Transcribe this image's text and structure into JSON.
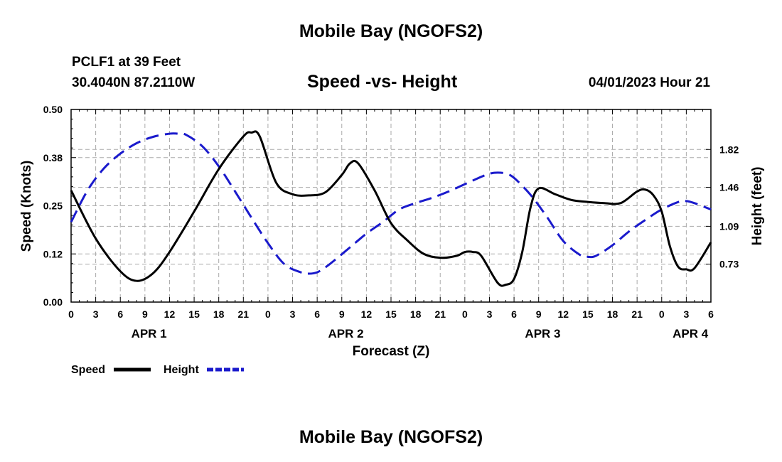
{
  "title": "Mobile Bay (NGOFS2)",
  "title_bottom": "Mobile Bay (NGOFS2)",
  "station_line": "PCLF1 at 39 Feet",
  "coords_line": "30.4040N  87.2110W",
  "subtitle": "Speed -vs- Height",
  "run_time": "04/01/2023 Hour 21",
  "legend": {
    "speed": "Speed",
    "height": "Height"
  },
  "colors": {
    "speed": "#000000",
    "height": "#1a1acc",
    "grid": "#aaaaaa"
  },
  "chart_data": {
    "type": "line",
    "title": "Speed -vs- Height",
    "xlabel": "Forecast (Z)",
    "ylabel": "Speed (Knots)",
    "y2label": "Height (feet)",
    "x_unit": "hours since APR 1 00Z",
    "xlim": [
      0,
      78
    ],
    "ylim": [
      0,
      0.5
    ],
    "y2lim": [
      0.37,
      2.2
    ],
    "x_ticks": [
      0,
      3,
      6,
      9,
      12,
      15,
      18,
      21,
      24,
      27,
      30,
      33,
      36,
      39,
      42,
      45,
      48,
      51,
      54,
      57,
      60,
      63,
      66,
      69,
      72,
      75,
      78
    ],
    "x_tick_labels": [
      "0",
      "3",
      "6",
      "9",
      "12",
      "15",
      "18",
      "21",
      "0",
      "3",
      "6",
      "9",
      "12",
      "15",
      "18",
      "21",
      "0",
      "3",
      "6",
      "9",
      "12",
      "15",
      "18",
      "21",
      "0",
      "3",
      "6"
    ],
    "y_ticks": [
      0,
      0.125,
      0.25,
      0.375,
      0.5
    ],
    "y_tick_labels": [
      "0.00",
      "0.12",
      "0.25",
      "0.38",
      "0.50"
    ],
    "y2_ticks": [
      0.73,
      1.09,
      1.46,
      1.82
    ],
    "y2_tick_labels": [
      "0.73",
      "1.09",
      "1.46",
      "1.82"
    ],
    "day_labels": [
      {
        "x": 9.5,
        "label": "APR 1"
      },
      {
        "x": 33.5,
        "label": "APR 2"
      },
      {
        "x": 57.5,
        "label": "APR 3"
      },
      {
        "x": 75.5,
        "label": "APR 4"
      }
    ],
    "grid": true,
    "series": [
      {
        "name": "Speed",
        "axis": "left",
        "style": "solid",
        "x": [
          0,
          3,
          6,
          8,
          10,
          12,
          15,
          18,
          21,
          22,
          23,
          25,
          27,
          29,
          31,
          33,
          34,
          35,
          37,
          39,
          41,
          43,
          45,
          47,
          48,
          49,
          50,
          52,
          53,
          54,
          55,
          56,
          57,
          59,
          61,
          63,
          65,
          67,
          69,
          70,
          71,
          72,
          73,
          74,
          75,
          76,
          78
        ],
        "values": [
          0.29,
          0.165,
          0.08,
          0.055,
          0.075,
          0.13,
          0.235,
          0.345,
          0.43,
          0.44,
          0.43,
          0.31,
          0.28,
          0.277,
          0.285,
          0.33,
          0.36,
          0.36,
          0.29,
          0.205,
          0.16,
          0.125,
          0.115,
          0.12,
          0.13,
          0.13,
          0.12,
          0.05,
          0.045,
          0.06,
          0.13,
          0.245,
          0.295,
          0.28,
          0.265,
          0.26,
          0.257,
          0.257,
          0.287,
          0.292,
          0.277,
          0.235,
          0.145,
          0.092,
          0.085,
          0.088,
          0.155
        ]
      },
      {
        "name": "Height",
        "axis": "right",
        "style": "dashed",
        "x": [
          0,
          2,
          4,
          6,
          8,
          10,
          12,
          13,
          14,
          16,
          18,
          20,
          22,
          24,
          26,
          28,
          29,
          30,
          31,
          32,
          34,
          36,
          38,
          40,
          42,
          44,
          46,
          48,
          50,
          51,
          52,
          53,
          54,
          56,
          58,
          60,
          62,
          63,
          64,
          66,
          68,
          70,
          72,
          74,
          75,
          76,
          78
        ],
        "values": [
          1.13,
          1.43,
          1.64,
          1.78,
          1.88,
          1.94,
          1.97,
          1.97,
          1.96,
          1.85,
          1.66,
          1.42,
          1.17,
          0.93,
          0.73,
          0.653,
          0.64,
          0.653,
          0.7,
          0.76,
          0.89,
          1.02,
          1.13,
          1.25,
          1.31,
          1.36,
          1.42,
          1.49,
          1.56,
          1.59,
          1.6,
          1.59,
          1.55,
          1.39,
          1.18,
          0.95,
          0.82,
          0.8,
          0.81,
          0.91,
          1.04,
          1.15,
          1.25,
          1.32,
          1.33,
          1.31,
          1.25
        ]
      }
    ]
  }
}
